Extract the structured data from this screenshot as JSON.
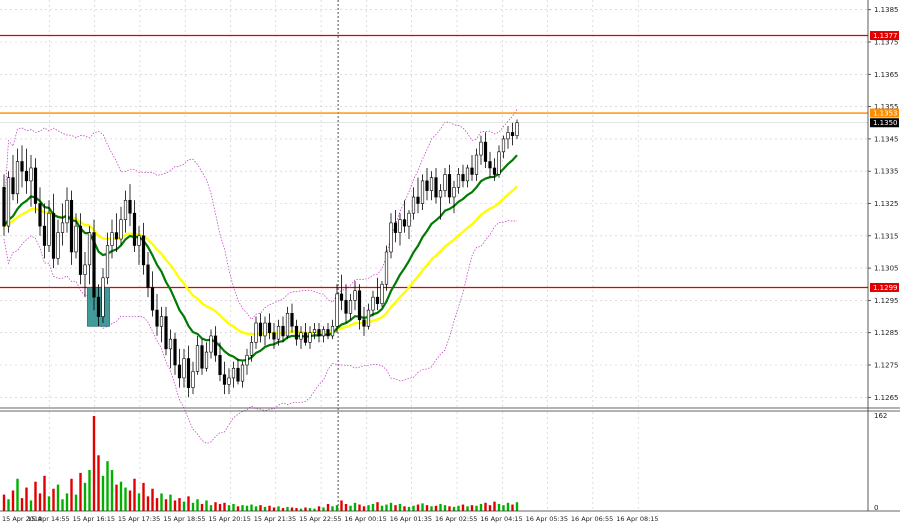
{
  "chart_data": {
    "type": "candlestick",
    "price_axis": {
      "range": [
        1.1262,
        1.1388
      ],
      "ticks": [
        "1.1385",
        "1.1375",
        "1.1365",
        "1.1355",
        "1.1345",
        "1.1335",
        "1.1325",
        "1.1315",
        "1.1305",
        "1.1295",
        "1.1285",
        "1.1275",
        "1.1265"
      ],
      "grid": true
    },
    "volume_axis": {
      "ticks": [
        "162",
        "0"
      ],
      "max": 162
    },
    "time_axis": {
      "labels": [
        "15 Apr 2019",
        "15 Apr 14:55",
        "15 Apr 16:15",
        "15 Apr 17:35",
        "15 Apr 18:55",
        "15 Apr 20:15",
        "15 Apr 21:35",
        "15 Apr 22:55",
        "16 Apr 00:15",
        "16 Apr 01:35",
        "16 Apr 02:55",
        "16 Apr 04:15",
        "16 Apr 05:35",
        "16 Apr 06:55",
        "16 Apr 08:15"
      ],
      "vertical_marker_label": "15 Apr 22:55"
    },
    "levels": [
      {
        "label": "1.1377",
        "value": 1.1377,
        "color": "#e00000"
      },
      {
        "label": "1.1353",
        "value": 1.1353,
        "color": "#ff8c00"
      },
      {
        "label": "1.1299",
        "value": 1.1299,
        "color": "#e00000"
      }
    ],
    "current_price": {
      "label": "1.1350",
      "value": 1.135
    },
    "highlight_box": {
      "from_index": 19,
      "to_index": 23,
      "high": 1.1299,
      "low": 1.1287,
      "color": "#2f8f8f"
    },
    "moving_averages": [
      {
        "color": "#ffff00",
        "period": 30
      },
      {
        "color": "#007a00",
        "period": 14
      }
    ],
    "envelope_color": "#c030c0",
    "colors": {
      "up_volume": "#00b000",
      "down_volume": "#e00000",
      "candle": "#000000",
      "background": "#ffffff",
      "grid": "#c8c8c8"
    },
    "series": [
      {
        "name": "candles",
        "points": [
          [
            1.133,
            1.1334,
            1.1315,
            1.1318
          ],
          [
            1.1318,
            1.1335,
            1.1316,
            1.1333
          ],
          [
            1.1333,
            1.134,
            1.1326,
            1.1328
          ],
          [
            1.1328,
            1.1342,
            1.1325,
            1.1338
          ],
          [
            1.1338,
            1.1343,
            1.133,
            1.1335
          ],
          [
            1.1335,
            1.1342,
            1.1328,
            1.1332
          ],
          [
            1.1332,
            1.134,
            1.1324,
            1.1336
          ],
          [
            1.1336,
            1.1339,
            1.1322,
            1.1325
          ],
          [
            1.1325,
            1.133,
            1.1315,
            1.1318
          ],
          [
            1.1318,
            1.1325,
            1.1308,
            1.1312
          ],
          [
            1.1312,
            1.1326,
            1.131,
            1.1322
          ],
          [
            1.1322,
            1.1328,
            1.1305,
            1.1308
          ],
          [
            1.1308,
            1.132,
            1.1306,
            1.1316
          ],
          [
            1.1316,
            1.1325,
            1.1312,
            1.1319
          ],
          [
            1.1319,
            1.133,
            1.1316,
            1.1326
          ],
          [
            1.1326,
            1.1329,
            1.1306,
            1.131
          ],
          [
            1.131,
            1.1322,
            1.1308,
            1.1318
          ],
          [
            1.1318,
            1.1322,
            1.13,
            1.1303
          ],
          [
            1.1303,
            1.131,
            1.1296,
            1.1306
          ],
          [
            1.1306,
            1.1318,
            1.13,
            1.1316
          ],
          [
            1.1316,
            1.132,
            1.1292,
            1.1296
          ],
          [
            1.1296,
            1.13,
            1.1287,
            1.129
          ],
          [
            1.129,
            1.1305,
            1.1288,
            1.1302
          ],
          [
            1.1302,
            1.1316,
            1.13,
            1.1312
          ],
          [
            1.1312,
            1.132,
            1.1308,
            1.1316
          ],
          [
            1.1316,
            1.1322,
            1.131,
            1.1314
          ],
          [
            1.1314,
            1.1324,
            1.1312,
            1.132
          ],
          [
            1.132,
            1.1329,
            1.1316,
            1.1326
          ],
          [
            1.1326,
            1.1331,
            1.1318,
            1.1322
          ],
          [
            1.1322,
            1.1326,
            1.131,
            1.1312
          ],
          [
            1.1312,
            1.1318,
            1.1306,
            1.1315
          ],
          [
            1.1315,
            1.1319,
            1.1303,
            1.1306
          ],
          [
            1.1306,
            1.131,
            1.1296,
            1.1299
          ],
          [
            1.1299,
            1.1304,
            1.129,
            1.1292
          ],
          [
            1.1292,
            1.1297,
            1.1284,
            1.1287
          ],
          [
            1.1287,
            1.1293,
            1.1282,
            1.129
          ],
          [
            1.129,
            1.1293,
            1.1278,
            1.128
          ],
          [
            1.128,
            1.1286,
            1.1274,
            1.1283
          ],
          [
            1.1283,
            1.1285,
            1.1272,
            1.1275
          ],
          [
            1.1275,
            1.128,
            1.1268,
            1.1271
          ],
          [
            1.1271,
            1.128,
            1.1268,
            1.1277
          ],
          [
            1.1277,
            1.1281,
            1.1265,
            1.1268
          ],
          [
            1.1268,
            1.1276,
            1.1266,
            1.1273
          ],
          [
            1.1273,
            1.1284,
            1.1272,
            1.1281
          ],
          [
            1.1281,
            1.1283,
            1.1272,
            1.1274
          ],
          [
            1.1274,
            1.1282,
            1.1273,
            1.1279
          ],
          [
            1.1279,
            1.1286,
            1.1277,
            1.1284
          ],
          [
            1.1284,
            1.1287,
            1.1276,
            1.1278
          ],
          [
            1.1278,
            1.1282,
            1.127,
            1.1272
          ],
          [
            1.1272,
            1.1276,
            1.1266,
            1.1269
          ],
          [
            1.1269,
            1.1274,
            1.1266,
            1.1271
          ],
          [
            1.1271,
            1.1276,
            1.1268,
            1.1274
          ],
          [
            1.1274,
            1.1277,
            1.1269,
            1.127
          ],
          [
            1.127,
            1.1276,
            1.1268,
            1.1275
          ],
          [
            1.1275,
            1.128,
            1.1272,
            1.1278
          ],
          [
            1.1278,
            1.1284,
            1.1276,
            1.1282
          ],
          [
            1.1282,
            1.129,
            1.128,
            1.1288
          ],
          [
            1.1288,
            1.1291,
            1.1282,
            1.1284
          ],
          [
            1.1284,
            1.129,
            1.1281,
            1.1288
          ],
          [
            1.1288,
            1.1291,
            1.1283,
            1.1285
          ],
          [
            1.1285,
            1.1288,
            1.128,
            1.1283
          ],
          [
            1.1283,
            1.1289,
            1.1281,
            1.1287
          ],
          [
            1.1287,
            1.129,
            1.1282,
            1.1284
          ],
          [
            1.1284,
            1.1293,
            1.1283,
            1.1291
          ],
          [
            1.1291,
            1.1294,
            1.1285,
            1.1287
          ],
          [
            1.1287,
            1.1289,
            1.1281,
            1.1283
          ],
          [
            1.1283,
            1.1287,
            1.128,
            1.1285
          ],
          [
            1.1285,
            1.1288,
            1.1281,
            1.1282
          ],
          [
            1.1282,
            1.1287,
            1.128,
            1.1285
          ],
          [
            1.1285,
            1.1288,
            1.1283,
            1.1286
          ],
          [
            1.1286,
            1.1288,
            1.1282,
            1.1284
          ],
          [
            1.1284,
            1.1287,
            1.1282,
            1.1286
          ],
          [
            1.1286,
            1.1288,
            1.1283,
            1.1284
          ],
          [
            1.1284,
            1.1289,
            1.1283,
            1.1287
          ],
          [
            1.1287,
            1.13,
            1.1285,
            1.1297
          ],
          [
            1.1297,
            1.1303,
            1.1292,
            1.1295
          ],
          [
            1.1295,
            1.13,
            1.1288,
            1.1291
          ],
          [
            1.1291,
            1.1297,
            1.1289,
            1.1295
          ],
          [
            1.1295,
            1.1301,
            1.1292,
            1.1298
          ],
          [
            1.1298,
            1.13,
            1.1286,
            1.1289
          ],
          [
            1.1289,
            1.1293,
            1.1284,
            1.1287
          ],
          [
            1.1287,
            1.1294,
            1.1286,
            1.1292
          ],
          [
            1.1292,
            1.1298,
            1.129,
            1.1296
          ],
          [
            1.1296,
            1.1302,
            1.1292,
            1.1294
          ],
          [
            1.1294,
            1.1301,
            1.1293,
            1.13
          ],
          [
            1.13,
            1.1312,
            1.1298,
            1.131
          ],
          [
            1.131,
            1.1322,
            1.1308,
            1.1319
          ],
          [
            1.1319,
            1.1323,
            1.1313,
            1.1316
          ],
          [
            1.1316,
            1.1322,
            1.1312,
            1.132
          ],
          [
            1.132,
            1.1326,
            1.1316,
            1.1318
          ],
          [
            1.1318,
            1.1323,
            1.1314,
            1.1322
          ],
          [
            1.1322,
            1.133,
            1.132,
            1.1327
          ],
          [
            1.1327,
            1.1333,
            1.1322,
            1.1325
          ],
          [
            1.1325,
            1.1334,
            1.1323,
            1.1332
          ],
          [
            1.1332,
            1.1336,
            1.1326,
            1.1329
          ],
          [
            1.1329,
            1.1335,
            1.1326,
            1.1333
          ],
          [
            1.1333,
            1.1336,
            1.1325,
            1.1327
          ],
          [
            1.1327,
            1.1331,
            1.132,
            1.1329
          ],
          [
            1.1329,
            1.1336,
            1.1327,
            1.1334
          ],
          [
            1.1334,
            1.1337,
            1.1325,
            1.1327
          ],
          [
            1.1327,
            1.1332,
            1.1322,
            1.133
          ],
          [
            1.133,
            1.1336,
            1.1328,
            1.1334
          ],
          [
            1.1334,
            1.1337,
            1.133,
            1.1332
          ],
          [
            1.1332,
            1.1337,
            1.133,
            1.1336
          ],
          [
            1.1336,
            1.134,
            1.1332,
            1.1334
          ],
          [
            1.1334,
            1.1342,
            1.1332,
            1.134
          ],
          [
            1.134,
            1.1346,
            1.1337,
            1.1344
          ],
          [
            1.1344,
            1.1347,
            1.1336,
            1.1338
          ],
          [
            1.1338,
            1.1341,
            1.1333,
            1.1336
          ],
          [
            1.1336,
            1.1339,
            1.1332,
            1.1334
          ],
          [
            1.1334,
            1.1343,
            1.1333,
            1.1341
          ],
          [
            1.1341,
            1.1346,
            1.1339,
            1.1345
          ],
          [
            1.1345,
            1.1349,
            1.1342,
            1.1347
          ],
          [
            1.1347,
            1.135,
            1.1343,
            1.1346
          ],
          [
            1.1346,
            1.1351,
            1.1345,
            1.135
          ]
        ]
      },
      {
        "name": "volume",
        "values": [
          28,
          20,
          35,
          55,
          22,
          40,
          18,
          50,
          30,
          60,
          25,
          38,
          45,
          20,
          30,
          55,
          28,
          65,
          48,
          70,
          162,
          95,
          60,
          85,
          70,
          45,
          50,
          40,
          35,
          55,
          30,
          48,
          25,
          38,
          22,
          30,
          20,
          28,
          18,
          22,
          16,
          25,
          14,
          20,
          12,
          18,
          10,
          15,
          12,
          14,
          10,
          12,
          8,
          10,
          9,
          11,
          8,
          10,
          7,
          9,
          6,
          8,
          5,
          7,
          6,
          5,
          4,
          6,
          5,
          4,
          8,
          6,
          12,
          8,
          10,
          18,
          12,
          9,
          14,
          11,
          8,
          10,
          12,
          15,
          9,
          11,
          14,
          10,
          12,
          8,
          7,
          9,
          11,
          13,
          10,
          8,
          9,
          12,
          10,
          8,
          7,
          9,
          11,
          8,
          10,
          9,
          12,
          14,
          10,
          16,
          12,
          10,
          14,
          11,
          15
        ]
      }
    ]
  }
}
